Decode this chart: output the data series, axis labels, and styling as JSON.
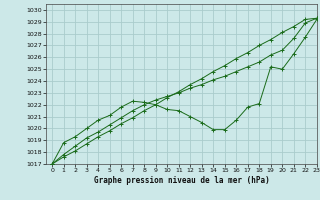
{
  "title": "Graphe pression niveau de la mer (hPa)",
  "background_color": "#cce8e8",
  "grid_color": "#aacccc",
  "line_color": "#1a6b1a",
  "xlim": [
    -0.5,
    23
  ],
  "ylim": [
    1017,
    1030.5
  ],
  "xticks": [
    0,
    1,
    2,
    3,
    4,
    5,
    6,
    7,
    8,
    9,
    10,
    11,
    12,
    13,
    14,
    15,
    16,
    17,
    18,
    19,
    20,
    21,
    22,
    23
  ],
  "yticks": [
    1017,
    1018,
    1019,
    1020,
    1021,
    1022,
    1023,
    1024,
    1025,
    1026,
    1027,
    1028,
    1029,
    1030
  ],
  "line1": {
    "x": [
      0,
      1,
      2,
      3,
      4,
      5,
      6,
      7,
      8,
      9,
      10,
      11,
      12,
      13,
      14,
      15,
      16,
      17,
      18,
      19,
      20,
      21,
      22,
      23
    ],
    "y": [
      1017.0,
      1017.6,
      1018.1,
      1018.7,
      1019.3,
      1019.8,
      1020.4,
      1020.9,
      1021.5,
      1022.0,
      1022.6,
      1023.1,
      1023.7,
      1024.2,
      1024.8,
      1025.3,
      1025.9,
      1026.4,
      1027.0,
      1027.5,
      1028.1,
      1028.6,
      1029.2,
      1029.3
    ]
  },
  "line2": {
    "x": [
      0,
      1,
      2,
      3,
      4,
      5,
      6,
      7,
      8,
      9,
      10,
      11,
      12,
      13,
      14,
      15,
      16,
      17,
      18,
      19,
      20,
      21,
      22,
      23
    ],
    "y": [
      1017.0,
      1017.8,
      1018.5,
      1019.2,
      1019.7,
      1020.3,
      1020.9,
      1021.5,
      1022.0,
      1022.4,
      1022.7,
      1023.0,
      1023.4,
      1023.7,
      1024.1,
      1024.4,
      1024.8,
      1025.2,
      1025.6,
      1026.2,
      1026.6,
      1027.6,
      1028.9,
      1029.3
    ]
  },
  "line3": {
    "x": [
      0,
      1,
      2,
      3,
      4,
      5,
      6,
      7,
      8,
      9,
      10,
      11,
      12,
      13,
      14,
      15,
      16,
      17,
      18,
      19,
      20,
      21,
      22,
      23
    ],
    "y": [
      1017.0,
      1018.8,
      1019.3,
      1020.0,
      1020.7,
      1021.1,
      1021.8,
      1022.3,
      1022.2,
      1022.0,
      1021.6,
      1021.5,
      1021.0,
      1020.5,
      1019.9,
      1019.9,
      1020.7,
      1021.8,
      1022.1,
      1025.2,
      1025.0,
      1026.3,
      1027.7,
      1029.2
    ]
  }
}
